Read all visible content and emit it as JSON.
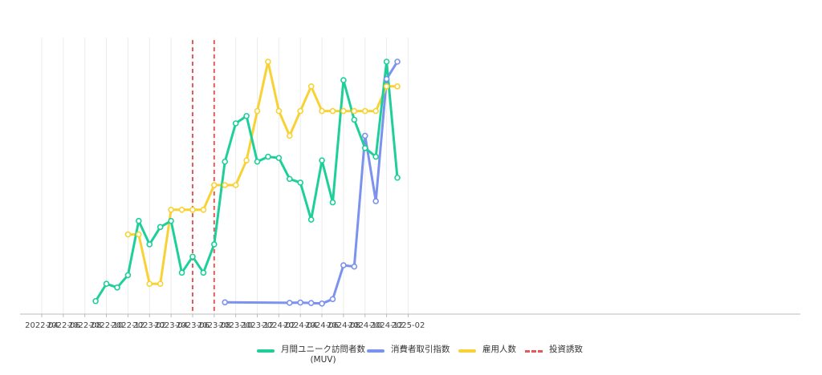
{
  "chart_data": {
    "type": "line",
    "title": "",
    "xlabel": "",
    "ylabel": "",
    "x_ticks": [
      "2022-04",
      "2022-06",
      "2022-08",
      "2022-10",
      "2022-12",
      "2023-02",
      "2023-04",
      "2023-06",
      "2023-08",
      "2023-10",
      "2023-12",
      "2024-02",
      "2024-04",
      "2024-06",
      "2024-08",
      "2024-10",
      "2024-12",
      "2025-02"
    ],
    "x_range": [
      "2022-03",
      "2025-03"
    ],
    "y_range": [
      0,
      100
    ],
    "y_axis_labels_shown": false,
    "vertical_grid": true,
    "legend_position": "bottom",
    "series": [
      {
        "name": "月間ユニーク訪問者数\n(MUV)",
        "color": "#1fcf9a",
        "points": [
          [
            "2022-09",
            3
          ],
          [
            "2022-10",
            10
          ],
          [
            "2022-11",
            8.5
          ],
          [
            "2022-12",
            13.5
          ],
          [
            "2023-01",
            35.5
          ],
          [
            "2023-02",
            26
          ],
          [
            "2023-03",
            33
          ],
          [
            "2023-04",
            35.5
          ],
          [
            "2023-05",
            14.5
          ],
          [
            "2023-06",
            21
          ],
          [
            "2023-07",
            14.5
          ],
          [
            "2023-08",
            26
          ],
          [
            "2023-09",
            59.5
          ],
          [
            "2023-10",
            75
          ],
          [
            "2023-11",
            78
          ],
          [
            "2023-12",
            59.5
          ],
          [
            "2024-01",
            61.5
          ],
          [
            "2024-02",
            61
          ],
          [
            "2024-03",
            52.5
          ],
          [
            "2024-04",
            51
          ],
          [
            "2024-05",
            36
          ],
          [
            "2024-06",
            60
          ],
          [
            "2024-07",
            43
          ],
          [
            "2024-08",
            92.5
          ],
          [
            "2024-09",
            76.5
          ],
          [
            "2024-10",
            65
          ],
          [
            "2024-11",
            61.5
          ],
          [
            "2024-12",
            100
          ],
          [
            "2025-01",
            53
          ]
        ]
      },
      {
        "name": "消費者取引指数",
        "color": "#7b92ee",
        "points": [
          [
            "2023-09",
            2.5
          ],
          [
            "2024-03",
            2.3
          ],
          [
            "2024-04",
            2.4
          ],
          [
            "2024-05",
            2.2
          ],
          [
            "2024-06",
            2
          ],
          [
            "2024-07",
            3.8
          ],
          [
            "2024-08",
            17.5
          ],
          [
            "2024-09",
            17
          ],
          [
            "2024-10",
            70
          ],
          [
            "2024-11",
            43.5
          ],
          [
            "2024-12",
            93
          ],
          [
            "2025-01",
            100
          ]
        ]
      },
      {
        "name": "雇用人数",
        "color": "#f8d235",
        "points": [
          [
            "2022-12",
            30
          ],
          [
            "2023-01",
            30
          ],
          [
            "2023-02",
            10
          ],
          [
            "2023-03",
            10
          ],
          [
            "2023-04",
            40
          ],
          [
            "2023-05",
            40
          ],
          [
            "2023-06",
            40
          ],
          [
            "2023-07",
            40
          ],
          [
            "2023-08",
            50
          ],
          [
            "2023-09",
            50
          ],
          [
            "2023-10",
            50
          ],
          [
            "2023-11",
            60
          ],
          [
            "2023-12",
            80
          ],
          [
            "2024-01",
            100
          ],
          [
            "2024-02",
            80
          ],
          [
            "2024-03",
            70
          ],
          [
            "2024-04",
            80
          ],
          [
            "2024-05",
            90
          ],
          [
            "2024-06",
            80
          ],
          [
            "2024-07",
            80
          ],
          [
            "2024-08",
            80
          ],
          [
            "2024-09",
            80
          ],
          [
            "2024-10",
            80
          ],
          [
            "2024-11",
            80
          ],
          [
            "2024-12",
            90
          ],
          [
            "2025-01",
            90
          ]
        ]
      }
    ],
    "events": {
      "name": "投資誘致",
      "color": "#e05a5a",
      "dates": [
        "2023-06",
        "2023-08"
      ]
    }
  },
  "legend": {
    "muv_label": "月間ユニーク訪問者数\n(MUV)",
    "cti_label": "消費者取引指数",
    "emp_label": "雇用人数",
    "inv_label": "投資誘致"
  }
}
